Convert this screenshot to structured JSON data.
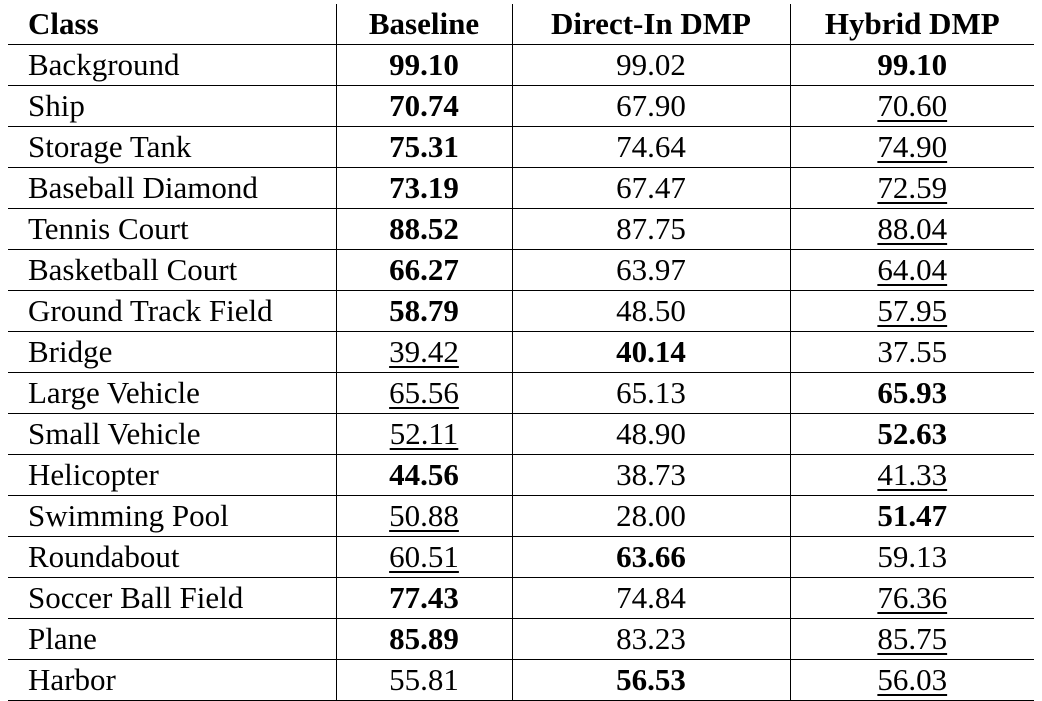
{
  "table": {
    "headers": [
      "Class",
      "Baseline",
      "Direct-In DMP",
      "Hybrid DMP"
    ],
    "rows": [
      {
        "class": "Background",
        "cells": [
          {
            "value": "99.10",
            "style": "bold"
          },
          {
            "value": "99.02",
            "style": "plain"
          },
          {
            "value": "99.10",
            "style": "bold"
          }
        ]
      },
      {
        "class": "Ship",
        "cells": [
          {
            "value": "70.74",
            "style": "bold"
          },
          {
            "value": "67.90",
            "style": "plain"
          },
          {
            "value": "70.60",
            "style": "underline"
          }
        ]
      },
      {
        "class": "Storage Tank",
        "cells": [
          {
            "value": "75.31",
            "style": "bold"
          },
          {
            "value": "74.64",
            "style": "plain"
          },
          {
            "value": "74.90",
            "style": "underline"
          }
        ]
      },
      {
        "class": "Baseball Diamond",
        "cells": [
          {
            "value": "73.19",
            "style": "bold"
          },
          {
            "value": "67.47",
            "style": "plain"
          },
          {
            "value": "72.59",
            "style": "underline"
          }
        ]
      },
      {
        "class": "Tennis Court",
        "cells": [
          {
            "value": "88.52",
            "style": "bold"
          },
          {
            "value": "87.75",
            "style": "plain"
          },
          {
            "value": "88.04",
            "style": "underline"
          }
        ]
      },
      {
        "class": "Basketball Court",
        "cells": [
          {
            "value": "66.27",
            "style": "bold"
          },
          {
            "value": "63.97",
            "style": "plain"
          },
          {
            "value": "64.04",
            "style": "underline"
          }
        ]
      },
      {
        "class": "Ground Track Field",
        "cells": [
          {
            "value": "58.79",
            "style": "bold"
          },
          {
            "value": "48.50",
            "style": "plain"
          },
          {
            "value": "57.95",
            "style": "underline"
          }
        ]
      },
      {
        "class": "Bridge",
        "cells": [
          {
            "value": "39.42",
            "style": "underline"
          },
          {
            "value": "40.14",
            "style": "bold"
          },
          {
            "value": "37.55",
            "style": "plain"
          }
        ]
      },
      {
        "class": "Large Vehicle",
        "cells": [
          {
            "value": "65.56",
            "style": "underline"
          },
          {
            "value": "65.13",
            "style": "plain"
          },
          {
            "value": "65.93",
            "style": "bold"
          }
        ]
      },
      {
        "class": "Small Vehicle",
        "cells": [
          {
            "value": "52.11",
            "style": "underline"
          },
          {
            "value": "48.90",
            "style": "plain"
          },
          {
            "value": "52.63",
            "style": "bold"
          }
        ]
      },
      {
        "class": "Helicopter",
        "cells": [
          {
            "value": "44.56",
            "style": "bold"
          },
          {
            "value": "38.73",
            "style": "plain"
          },
          {
            "value": "41.33",
            "style": "underline"
          }
        ]
      },
      {
        "class": "Swimming Pool",
        "cells": [
          {
            "value": "50.88",
            "style": "underline"
          },
          {
            "value": "28.00",
            "style": "plain"
          },
          {
            "value": "51.47",
            "style": "bold"
          }
        ]
      },
      {
        "class": "Roundabout",
        "cells": [
          {
            "value": "60.51",
            "style": "underline"
          },
          {
            "value": "63.66",
            "style": "bold"
          },
          {
            "value": "59.13",
            "style": "plain"
          }
        ]
      },
      {
        "class": "Soccer Ball Field",
        "cells": [
          {
            "value": "77.43",
            "style": "bold"
          },
          {
            "value": "74.84",
            "style": "plain"
          },
          {
            "value": "76.36",
            "style": "underline"
          }
        ]
      },
      {
        "class": "Plane",
        "cells": [
          {
            "value": "85.89",
            "style": "bold"
          },
          {
            "value": "83.23",
            "style": "plain"
          },
          {
            "value": "85.75",
            "style": "underline"
          }
        ]
      },
      {
        "class": "Harbor",
        "cells": [
          {
            "value": "55.81",
            "style": "plain"
          },
          {
            "value": "56.53",
            "style": "bold"
          },
          {
            "value": "56.03",
            "style": "underline"
          }
        ]
      }
    ]
  }
}
